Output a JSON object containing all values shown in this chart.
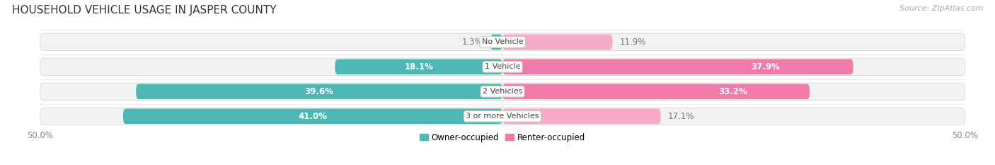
{
  "title": "HOUSEHOLD VEHICLE USAGE IN JASPER COUNTY",
  "source": "Source: ZipAtlas.com",
  "categories": [
    "No Vehicle",
    "1 Vehicle",
    "2 Vehicles",
    "3 or more Vehicles"
  ],
  "owner_values": [
    1.3,
    18.1,
    39.6,
    41.0
  ],
  "renter_values": [
    11.9,
    37.9,
    33.2,
    17.1
  ],
  "owner_color": "#4db8b4",
  "renter_color": "#f07aaa",
  "renter_color_light": "#f5aac8",
  "owner_label_color_inside": "#ffffff",
  "owner_label_color_outside": "#777777",
  "renter_label_color_inside": "#ffffff",
  "renter_label_color_outside": "#777777",
  "xlim": [
    -50,
    50
  ],
  "bar_height": 0.62,
  "row_bg_color": "#f0f0f0",
  "row_bg_alpha": 1.0,
  "legend_owner": "Owner-occupied",
  "legend_renter": "Renter-occupied",
  "title_fontsize": 11,
  "source_fontsize": 8,
  "label_fontsize": 8.5,
  "category_fontsize": 8,
  "legend_fontsize": 8.5,
  "axis_fontsize": 8.5,
  "inside_threshold": 8,
  "renter_inside_threshold": 20
}
